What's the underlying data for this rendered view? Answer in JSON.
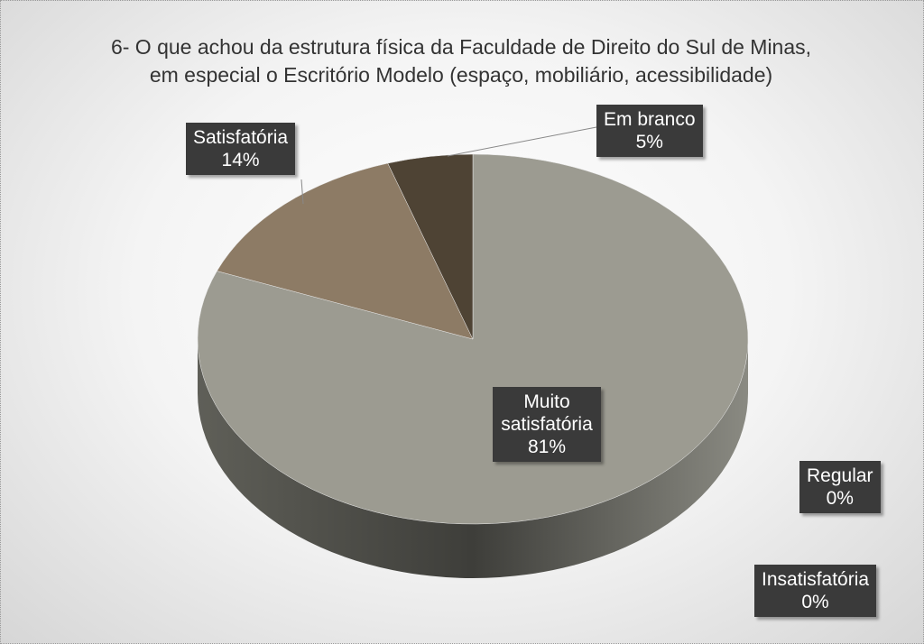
{
  "chart_data": {
    "type": "pie",
    "title": "6- O que achou da estrutura física da Faculdade de Direito do Sul de Minas, em especial o Escritório Modelo (espaço, mobiliário, acessibilidade)",
    "categories": [
      "Muito satisfatória",
      "Satisfatória",
      "Em branco",
      "Regular",
      "Insatisfatória"
    ],
    "values": [
      81,
      14,
      5,
      0,
      0
    ],
    "value_labels": [
      "81%",
      "14%",
      "5%",
      "0%",
      "0%"
    ],
    "colors": [
      "#9c9b91",
      "#8d7b65",
      "#4e4334",
      "#6f6f6f",
      "#5a5a5a"
    ]
  }
}
